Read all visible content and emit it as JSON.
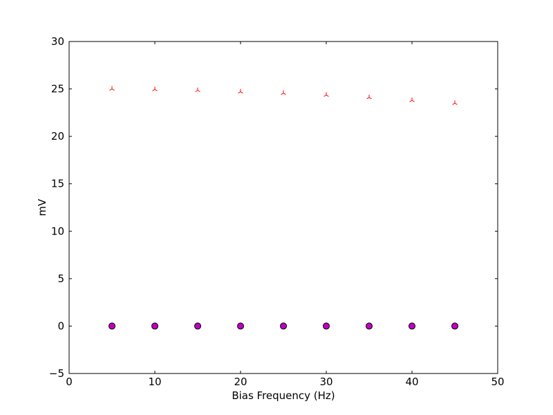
{
  "chart_data": {
    "type": "scatter",
    "title": "",
    "xlabel": "Bias Frequency (Hz)",
    "ylabel": "mV",
    "xlim": [
      0,
      50
    ],
    "ylim": [
      -5,
      30
    ],
    "xticks": [
      0,
      10,
      20,
      30,
      40,
      50
    ],
    "yticks": [
      -5,
      0,
      5,
      10,
      15,
      20,
      25,
      30
    ],
    "xtick_labels": [
      "0",
      "10",
      "20",
      "30",
      "40",
      "50"
    ],
    "ytick_labels": [
      "−5",
      "0",
      "5",
      "10",
      "15",
      "20",
      "25",
      "30"
    ],
    "grid": false,
    "legend": "none",
    "series": [
      {
        "marker": "tri-down",
        "color": "#ff0000",
        "x": [
          5,
          10,
          15,
          20,
          25,
          30,
          35,
          40,
          45
        ],
        "y": [
          25.0,
          24.95,
          24.85,
          24.7,
          24.55,
          24.35,
          24.1,
          23.8,
          23.5
        ]
      },
      {
        "marker": "circle",
        "color": "#bf00bf",
        "x": [
          5,
          10,
          15,
          20,
          25,
          30,
          35,
          40,
          45
        ],
        "y": [
          0,
          0,
          0,
          0,
          0,
          0,
          0,
          0,
          0
        ]
      }
    ]
  }
}
